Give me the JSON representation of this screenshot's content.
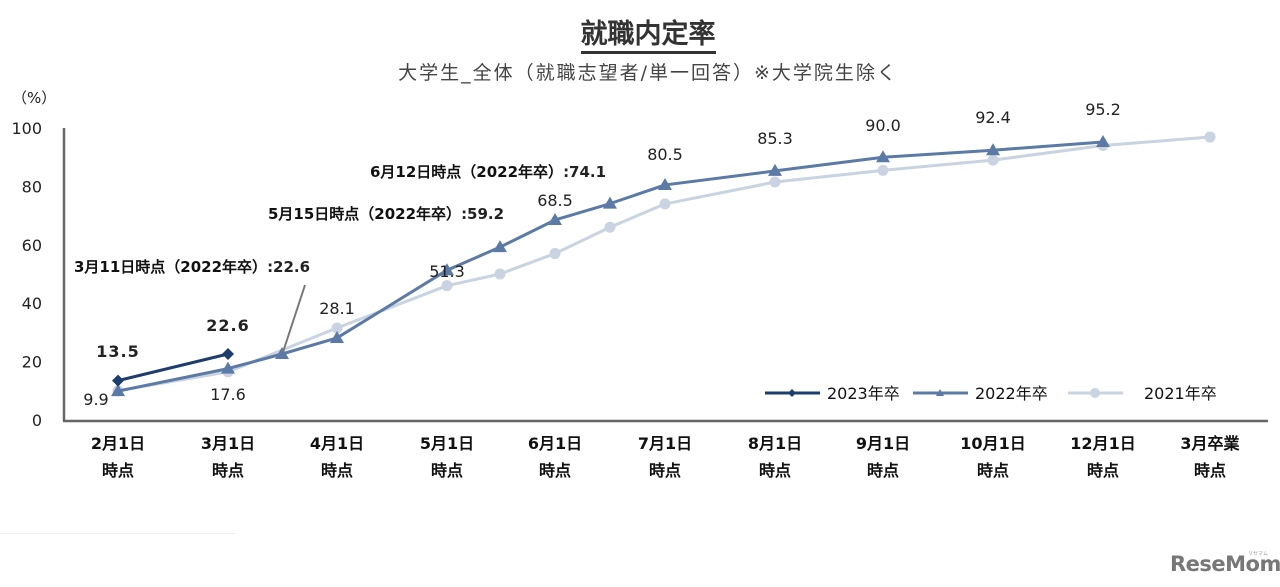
{
  "header": {
    "title": "就職内定率",
    "subtitle": "大学生_全体（就職志望者/単一回答）※大学院生除く",
    "unit": "（%）"
  },
  "logo": {
    "text": "ReseMom",
    "kana": "リセマム"
  },
  "colors": {
    "s2023": "#1c3d6e",
    "s2022": "#5b7aa6",
    "s2021": "#c9d3e1",
    "axis": "#666666"
  },
  "annotations": [
    {
      "label": "3月11日時点（2022年卒）",
      "value": "22.6"
    },
    {
      "label": "5月15日時点（2022年卒）",
      "value": "59.2"
    },
    {
      "label": "6月12日時点（2022年卒）",
      "value": "74.1"
    }
  ],
  "chart_data": {
    "type": "line",
    "title": "就職内定率",
    "subtitle": "大学生_全体（就職志望者/単一回答）※大学院生除く",
    "xlabel": "",
    "ylabel": "（%）",
    "ylim": [
      0,
      100
    ],
    "yticks": [
      0,
      20,
      40,
      60,
      80,
      100
    ],
    "grid": false,
    "legend_position": "lower right",
    "categories": [
      "2月1日時点",
      "3月1日時点",
      "4月1日時点",
      "5月1日時点",
      "6月1日時点",
      "7月1日時点",
      "8月1日時点",
      "9月1日時点",
      "10月1日時点",
      "12月1日時点",
      "3月卒業時点"
    ],
    "category_lines": [
      [
        "2月1日",
        "時点"
      ],
      [
        "3月1日",
        "時点"
      ],
      [
        "4月1日",
        "時点"
      ],
      [
        "5月1日",
        "時点"
      ],
      [
        "6月1日",
        "時点"
      ],
      [
        "7月1日",
        "時点"
      ],
      [
        "8月1日",
        "時点"
      ],
      [
        "9月1日",
        "時点"
      ],
      [
        "10月1日",
        "時点"
      ],
      [
        "12月1日",
        "時点"
      ],
      [
        "3月卒業",
        "時点"
      ]
    ],
    "series": [
      {
        "name": "2023年卒",
        "marker": "diamond",
        "points": [
          {
            "x": "2月1日",
            "y": 13.5
          },
          {
            "x": "3月1日",
            "y": 22.6
          }
        ]
      },
      {
        "name": "2022年卒",
        "marker": "triangle",
        "points": [
          {
            "x": "2月1日",
            "y": 9.9
          },
          {
            "x": "3月1日",
            "y": 17.6
          },
          {
            "x": "3月11日",
            "y": 22.6
          },
          {
            "x": "4月1日",
            "y": 28.1
          },
          {
            "x": "5月1日",
            "y": 51.3
          },
          {
            "x": "5月15日",
            "y": 59.2
          },
          {
            "x": "6月1日",
            "y": 68.5
          },
          {
            "x": "6月12日",
            "y": 74.1
          },
          {
            "x": "7月1日",
            "y": 80.5
          },
          {
            "x": "8月1日",
            "y": 85.3
          },
          {
            "x": "9月1日",
            "y": 90.0
          },
          {
            "x": "10月1日",
            "y": 92.4
          },
          {
            "x": "12月1日",
            "y": 95.2
          }
        ]
      },
      {
        "name": "2021年卒",
        "marker": "circle",
        "points": [
          {
            "x": "2月1日",
            "y": 10.0
          },
          {
            "x": "3月1日",
            "y": 16.5
          },
          {
            "x": "4月1日",
            "y": 31.5
          },
          {
            "x": "5月1日",
            "y": 46.0
          },
          {
            "x": "5月中旬",
            "y": 50.0
          },
          {
            "x": "6月1日",
            "y": 57.0
          },
          {
            "x": "6月中旬",
            "y": 66.0
          },
          {
            "x": "7月1日",
            "y": 74.0
          },
          {
            "x": "8月1日",
            "y": 81.5
          },
          {
            "x": "9月1日",
            "y": 85.5
          },
          {
            "x": "10月1日",
            "y": 89.0
          },
          {
            "x": "12月1日",
            "y": 94.0
          },
          {
            "x": "3月卒業",
            "y": 96.9
          }
        ]
      }
    ],
    "data_labels": {
      "2023年卒": [
        "13.5",
        "22.6"
      ],
      "2022年卒": [
        "9.9",
        "17.6",
        "28.1",
        "51.3",
        "68.5",
        "80.5",
        "85.3",
        "90.0",
        "92.4",
        "95.2"
      ]
    }
  }
}
